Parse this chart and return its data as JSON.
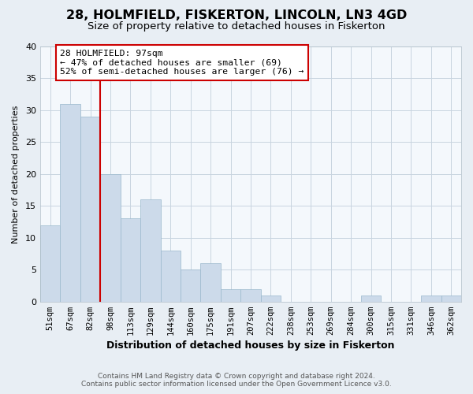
{
  "title": "28, HOLMFIELD, FISKERTON, LINCOLN, LN3 4GD",
  "subtitle": "Size of property relative to detached houses in Fiskerton",
  "xlabel": "Distribution of detached houses by size in Fiskerton",
  "ylabel": "Number of detached properties",
  "bin_labels": [
    "51sqm",
    "67sqm",
    "82sqm",
    "98sqm",
    "113sqm",
    "129sqm",
    "144sqm",
    "160sqm",
    "175sqm",
    "191sqm",
    "207sqm",
    "222sqm",
    "238sqm",
    "253sqm",
    "269sqm",
    "284sqm",
    "300sqm",
    "315sqm",
    "331sqm",
    "346sqm",
    "362sqm"
  ],
  "bar_heights": [
    12,
    31,
    29,
    20,
    13,
    16,
    8,
    5,
    6,
    2,
    2,
    1,
    0,
    0,
    0,
    0,
    1,
    0,
    0,
    1,
    1
  ],
  "bar_color": "#ccdaea",
  "bar_edge_color": "#9ab8cc",
  "vline_color": "#cc0000",
  "annotation_box_color": "#cc0000",
  "annotation_line1": "28 HOLMFIELD: 97sqm",
  "annotation_line2": "← 47% of detached houses are smaller (69)",
  "annotation_line3": "52% of semi-detached houses are larger (76) →",
  "ylim": [
    0,
    40
  ],
  "yticks": [
    0,
    5,
    10,
    15,
    20,
    25,
    30,
    35,
    40
  ],
  "footer_line1": "Contains HM Land Registry data © Crown copyright and database right 2024.",
  "footer_line2": "Contains public sector information licensed under the Open Government Licence v3.0.",
  "background_color": "#e8eef4",
  "plot_background_color": "#f4f8fc",
  "grid_color": "#c8d4e0"
}
